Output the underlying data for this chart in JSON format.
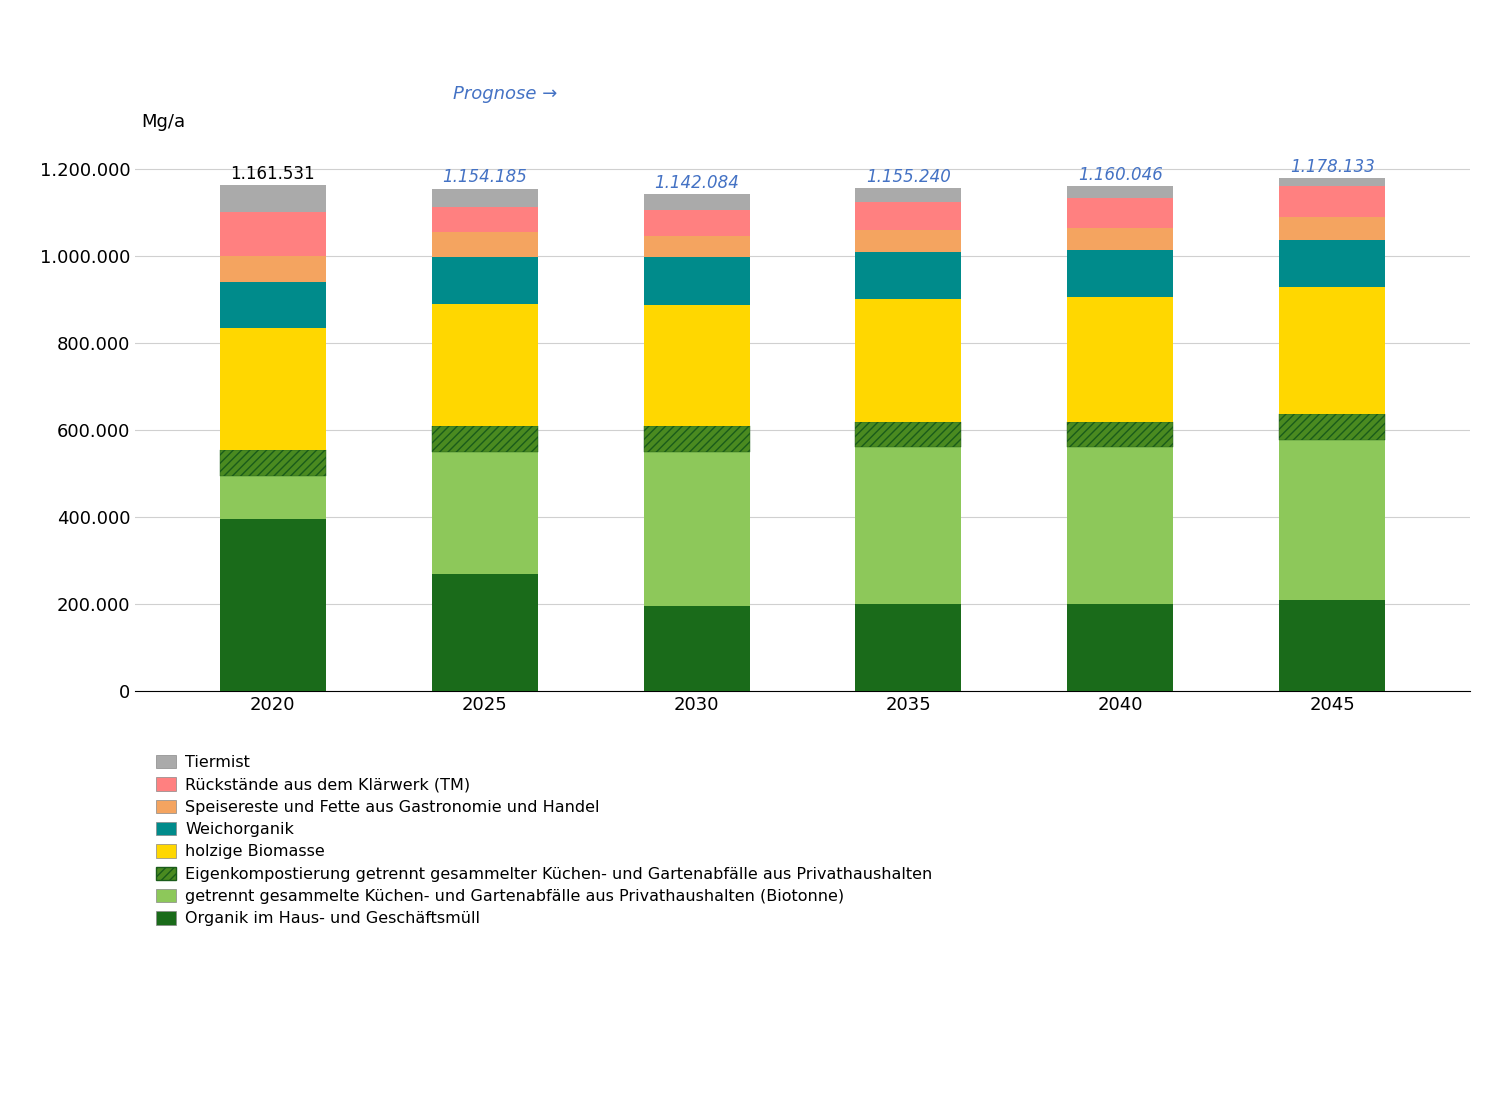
{
  "years": [
    2020,
    2025,
    2030,
    2035,
    2040,
    2045
  ],
  "totals": [
    "1.161.531",
    "1.154.185",
    "1.142.084",
    "1.155.240",
    "1.160.046",
    "1.178.133"
  ],
  "totals_is_forecast": [
    false,
    true,
    true,
    true,
    true,
    true
  ],
  "segments": {
    "Organik im Haus- und Geschäftsmüll": {
      "values": [
        395000,
        270000,
        195000,
        200000,
        200000,
        210000
      ],
      "color": "#1a6b1a",
      "hatch": null
    },
    "getrennt gesammelte Küchen- und Gartenabfälle aus Privathaushalten (Biotonne)": {
      "values": [
        100000,
        280000,
        355000,
        360000,
        360000,
        368000
      ],
      "color": "#8DC85A",
      "hatch": null
    },
    "Eigenkompostierung getrennt gesammelter Küchen- und Gartenabfälle aus Privathaushalten": {
      "values": [
        58000,
        58000,
        58000,
        58000,
        58000,
        58000
      ],
      "color": "#4a8a20",
      "hatch": "////"
    },
    "holzige Biomasse": {
      "values": [
        282000,
        282000,
        280000,
        283000,
        288000,
        293000
      ],
      "color": "#FFD700",
      "hatch": null
    },
    "Weichorganik": {
      "values": [
        105000,
        108000,
        108000,
        108000,
        108000,
        108000
      ],
      "color": "#008B8B",
      "hatch": null
    },
    "Speisereste und Fette aus Gastronomie und Handel": {
      "values": [
        60000,
        56000,
        50000,
        50000,
        50000,
        52000
      ],
      "color": "#F4A460",
      "hatch": null
    },
    "Rückstände aus dem Klärwerk (TM)": {
      "values": [
        100000,
        58000,
        60000,
        64000,
        68000,
        71000
      ],
      "color": "#FF8080",
      "hatch": null
    },
    "Tiermist": {
      "values": [
        61531,
        42185,
        36084,
        32240,
        28046,
        18133
      ],
      "color": "#AAAAAA",
      "hatch": null
    }
  },
  "ylabel": "Mg/a",
  "ylim": [
    0,
    1280000
  ],
  "yticks": [
    0,
    200000,
    400000,
    600000,
    800000,
    1000000,
    1200000
  ],
  "ytick_labels": [
    "0",
    "200.000",
    "400.000",
    "600.000",
    "800.000",
    "1.000.000",
    "1.200.000"
  ],
  "bar_width": 0.5,
  "forecast_label": "Prognose →",
  "forecast_color": "#4472C4",
  "background_color": "#FFFFFF",
  "grid_color": "#D0D0D0"
}
